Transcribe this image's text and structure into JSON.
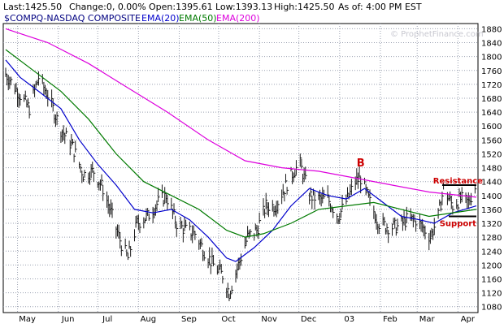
{
  "header": {
    "last": "Last:1425.50",
    "change": "Change:0, 0.00%",
    "open": "Open:1395.61",
    "low": "Low:1393.13",
    "high": "High:1425.50",
    "asof": "As of:  4:00 PM EST"
  },
  "legend": {
    "symbol": "$COMPQ-NASDAQ COMPOSITE",
    "ema20": "EMA(20)",
    "ema50": "EMA(50)",
    "ema200": "EMA(200)"
  },
  "watermark": "© ProphetFinance.com",
  "annotations": {
    "b_label": "B",
    "resistance_label": "Resistance",
    "support_label": "Support"
  },
  "colors": {
    "price": "#1a1a1a",
    "ema20": "#0000cc",
    "ema50": "#007a00",
    "ema200": "#dd00dd",
    "annotation": "#cc0000",
    "grid": "#9aa0b0",
    "header_bg": "#ffffff"
  },
  "chart_data": {
    "type": "line",
    "title": "$COMPQ-NASDAQ COMPOSITE",
    "x_tick_labels": [
      "May",
      "Jun",
      "Jul",
      "Aug",
      "Sep",
      "Oct",
      "Nov",
      "Dec",
      "03",
      "Feb",
      "Mar",
      "Apr"
    ],
    "y_ticks": [
      1080,
      1120,
      1160,
      1200,
      1240,
      1280,
      1320,
      1360,
      1400,
      1440,
      1480,
      1520,
      1560,
      1600,
      1640,
      1680,
      1720,
      1760,
      1800,
      1840,
      1880
    ],
    "ylim": [
      1060,
      1900
    ],
    "grid": true,
    "y_axis_side": "right",
    "x_domain": [
      "2002-04-22",
      "2003-04-15"
    ],
    "series": [
      {
        "name": "$COMPQ-NASDAQ COMPOSITE",
        "style": "hlc-bars",
        "points": [
          [
            "2002-04-22",
            1750
          ],
          [
            "2002-05-01",
            1700
          ],
          [
            "2002-05-10",
            1650
          ],
          [
            "2002-05-17",
            1740
          ],
          [
            "2002-05-24",
            1690
          ],
          [
            "2002-06-03",
            1590
          ],
          [
            "2002-06-12",
            1540
          ],
          [
            "2002-06-20",
            1460
          ],
          [
            "2002-06-28",
            1470
          ],
          [
            "2002-07-05",
            1420
          ],
          [
            "2002-07-12",
            1340
          ],
          [
            "2002-07-19",
            1260
          ],
          [
            "2002-07-24",
            1220
          ],
          [
            "2002-07-31",
            1320
          ],
          [
            "2002-08-08",
            1340
          ],
          [
            "2002-08-16",
            1380
          ],
          [
            "2002-08-22",
            1400
          ],
          [
            "2002-08-30",
            1320
          ],
          [
            "2002-09-06",
            1300
          ],
          [
            "2002-09-13",
            1290
          ],
          [
            "2002-09-20",
            1240
          ],
          [
            "2002-09-27",
            1200
          ],
          [
            "2002-10-04",
            1170
          ],
          [
            "2002-10-09",
            1120
          ],
          [
            "2002-10-16",
            1200
          ],
          [
            "2002-10-23",
            1280
          ],
          [
            "2002-10-30",
            1300
          ],
          [
            "2002-11-06",
            1370
          ],
          [
            "2002-11-13",
            1370
          ],
          [
            "2002-11-20",
            1420
          ],
          [
            "2002-11-27",
            1470
          ],
          [
            "2002-12-02",
            1490
          ],
          [
            "2002-12-09",
            1400
          ],
          [
            "2002-12-16",
            1390
          ],
          [
            "2002-12-23",
            1390
          ],
          [
            "2002-12-31",
            1340
          ],
          [
            "2003-01-07",
            1390
          ],
          [
            "2003-01-13",
            1440
          ],
          [
            "2003-01-17",
            1450
          ],
          [
            "2003-01-24",
            1380
          ],
          [
            "2003-01-31",
            1320
          ],
          [
            "2003-02-07",
            1310
          ],
          [
            "2003-02-14",
            1310
          ],
          [
            "2003-02-21",
            1330
          ],
          [
            "2003-02-28",
            1330
          ],
          [
            "2003-03-07",
            1300
          ],
          [
            "2003-03-11",
            1280
          ],
          [
            "2003-03-17",
            1340
          ],
          [
            "2003-03-21",
            1420
          ],
          [
            "2003-03-28",
            1370
          ],
          [
            "2003-04-03",
            1390
          ],
          [
            "2003-04-09",
            1380
          ],
          [
            "2003-04-14",
            1425
          ]
        ]
      },
      {
        "name": "EMA(20)",
        "points": [
          [
            "2002-04-22",
            1790
          ],
          [
            "2002-05-03",
            1740
          ],
          [
            "2002-05-17",
            1700
          ],
          [
            "2002-06-03",
            1650
          ],
          [
            "2002-06-17",
            1560
          ],
          [
            "2002-07-01",
            1490
          ],
          [
            "2002-07-15",
            1430
          ],
          [
            "2002-07-29",
            1360
          ],
          [
            "2002-08-12",
            1350
          ],
          [
            "2002-08-26",
            1360
          ],
          [
            "2002-09-09",
            1330
          ],
          [
            "2002-09-23",
            1280
          ],
          [
            "2002-10-07",
            1220
          ],
          [
            "2002-10-14",
            1210
          ],
          [
            "2002-10-28",
            1250
          ],
          [
            "2002-11-11",
            1300
          ],
          [
            "2002-11-25",
            1370
          ],
          [
            "2002-12-09",
            1420
          ],
          [
            "2002-12-23",
            1400
          ],
          [
            "2003-01-06",
            1390
          ],
          [
            "2003-01-20",
            1420
          ],
          [
            "2003-02-03",
            1380
          ],
          [
            "2003-02-17",
            1340
          ],
          [
            "2003-03-03",
            1330
          ],
          [
            "2003-03-14",
            1320
          ],
          [
            "2003-03-28",
            1350
          ],
          [
            "2003-04-15",
            1370
          ]
        ]
      },
      {
        "name": "EMA(50)",
        "points": [
          [
            "2002-04-22",
            1820
          ],
          [
            "2002-05-13",
            1760
          ],
          [
            "2002-06-03",
            1700
          ],
          [
            "2002-06-24",
            1620
          ],
          [
            "2002-07-15",
            1520
          ],
          [
            "2002-08-05",
            1440
          ],
          [
            "2002-08-26",
            1400
          ],
          [
            "2002-09-16",
            1360
          ],
          [
            "2002-10-07",
            1300
          ],
          [
            "2002-10-21",
            1280
          ],
          [
            "2002-11-04",
            1290
          ],
          [
            "2002-11-25",
            1320
          ],
          [
            "2002-12-16",
            1360
          ],
          [
            "2003-01-06",
            1370
          ],
          [
            "2003-01-27",
            1380
          ],
          [
            "2003-02-17",
            1360
          ],
          [
            "2003-03-10",
            1340
          ],
          [
            "2003-04-15",
            1360
          ]
        ]
      },
      {
        "name": "EMA(200)",
        "points": [
          [
            "2002-04-22",
            1880
          ],
          [
            "2002-05-24",
            1840
          ],
          [
            "2002-06-24",
            1780
          ],
          [
            "2002-07-24",
            1710
          ],
          [
            "2002-08-23",
            1640
          ],
          [
            "2002-09-23",
            1560
          ],
          [
            "2002-10-21",
            1500
          ],
          [
            "2002-11-18",
            1480
          ],
          [
            "2002-12-16",
            1470
          ],
          [
            "2003-01-13",
            1450
          ],
          [
            "2003-02-10",
            1430
          ],
          [
            "2003-03-10",
            1410
          ],
          [
            "2003-04-15",
            1395
          ]
        ]
      }
    ],
    "annotations": [
      {
        "label": "B",
        "x": "2003-01-17",
        "y": 1470
      },
      {
        "label": "Resistance",
        "x": "2003-04-01",
        "y": 1430
      },
      {
        "label": "Support",
        "x": "2003-04-01",
        "y": 1340
      }
    ],
    "reference_lines": [
      {
        "name": "resistance",
        "y": 1430,
        "x_from": "2003-03-20",
        "x_to": "2003-04-15"
      },
      {
        "name": "support",
        "y": 1340,
        "x_from": "2003-03-25",
        "x_to": "2003-04-15"
      }
    ]
  }
}
